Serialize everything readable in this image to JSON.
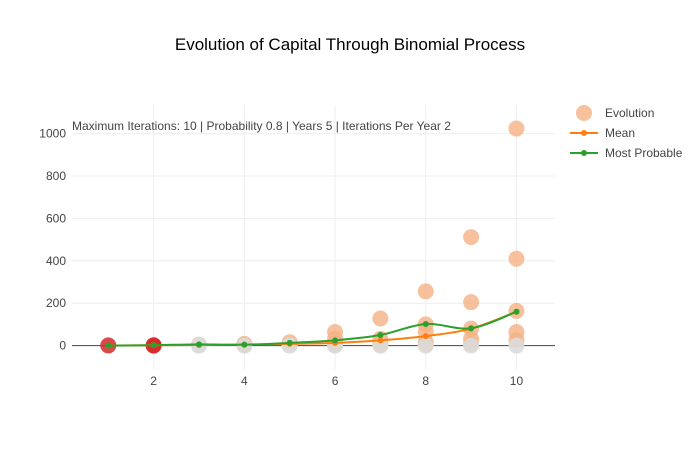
{
  "chart_data": {
    "type": "scatter",
    "title": "Evolution of Capital Through Binomial Process",
    "annotation": "Maximum Iterations: 10 | Probability 0.8 | Years 5 | Iterations Per Year 2",
    "xlabel": "",
    "ylabel": "",
    "xlim": [
      0.2,
      10.85
    ],
    "ylim": [
      -115,
      1135
    ],
    "x_ticks": [
      2,
      4,
      6,
      8,
      10
    ],
    "y_ticks": [
      0,
      200,
      400,
      600,
      800,
      1000
    ],
    "grid": true,
    "legend_position": "top-right",
    "legend": [
      "Evolution",
      "Mean",
      "Most Probable"
    ],
    "series": [
      {
        "name": "Evolution",
        "kind": "markers",
        "points": [
          {
            "x": 1,
            "y": 1
          },
          {
            "x": 2,
            "y": 2
          },
          {
            "x": 2,
            "y": 0
          },
          {
            "x": 3,
            "y": 4
          },
          {
            "x": 3,
            "y": 1
          },
          {
            "x": 3,
            "y": 0
          },
          {
            "x": 4,
            "y": 8
          },
          {
            "x": 4,
            "y": 2
          },
          {
            "x": 4,
            "y": 0
          },
          {
            "x": 5,
            "y": 16
          },
          {
            "x": 5,
            "y": 4
          },
          {
            "x": 5,
            "y": 1
          },
          {
            "x": 5,
            "y": 0
          },
          {
            "x": 6,
            "y": 64
          },
          {
            "x": 6,
            "y": 32
          },
          {
            "x": 6,
            "y": 8
          },
          {
            "x": 6,
            "y": 2
          },
          {
            "x": 6,
            "y": 0
          },
          {
            "x": 7,
            "y": 128
          },
          {
            "x": 7,
            "y": 32
          },
          {
            "x": 7,
            "y": 8
          },
          {
            "x": 7,
            "y": 2
          },
          {
            "x": 7,
            "y": 0
          },
          {
            "x": 8,
            "y": 256
          },
          {
            "x": 8,
            "y": 100
          },
          {
            "x": 8,
            "y": 64
          },
          {
            "x": 8,
            "y": 16
          },
          {
            "x": 8,
            "y": 4
          },
          {
            "x": 8,
            "y": 0
          },
          {
            "x": 9,
            "y": 512
          },
          {
            "x": 9,
            "y": 205
          },
          {
            "x": 9,
            "y": 80
          },
          {
            "x": 9,
            "y": 32
          },
          {
            "x": 9,
            "y": 8
          },
          {
            "x": 9,
            "y": 0
          },
          {
            "x": 10,
            "y": 1024
          },
          {
            "x": 10,
            "y": 410
          },
          {
            "x": 10,
            "y": 164
          },
          {
            "x": 10,
            "y": 64
          },
          {
            "x": 10,
            "y": 26
          },
          {
            "x": 10,
            "y": 0
          }
        ],
        "color": "#f4b183"
      },
      {
        "name": "Mean",
        "kind": "lines+markers",
        "x": [
          1,
          2,
          3,
          4,
          5,
          6,
          7,
          8,
          9,
          10
        ],
        "y": [
          0,
          2,
          3,
          5,
          8,
          13,
          25,
          45,
          80,
          160
        ],
        "color": "#ff7f0e"
      },
      {
        "name": "Most Probable",
        "kind": "lines+markers",
        "x": [
          1,
          2,
          3,
          4,
          5,
          6,
          7,
          8,
          9,
          10
        ],
        "y": [
          0,
          2,
          6,
          4,
          13,
          25,
          50,
          102,
          82,
          160
        ],
        "color": "#2ca02c"
      }
    ],
    "start_marker_color": "#d62728"
  }
}
